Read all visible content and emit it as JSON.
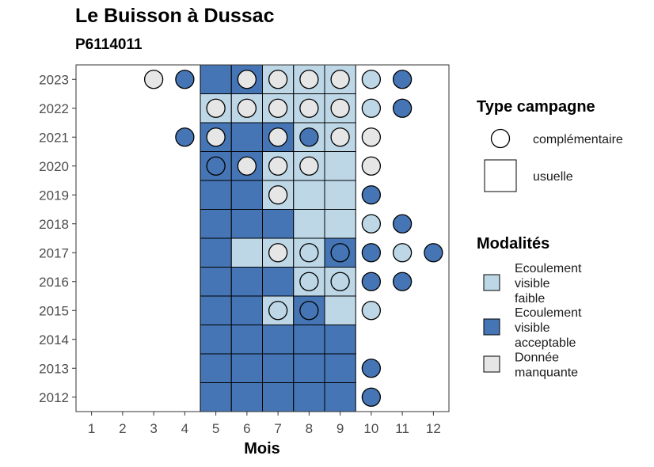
{
  "chart_data": {
    "type": "heatmap",
    "title": "Le Buisson à Dussac",
    "subtitle": "P6114011",
    "xlabel": "Mois",
    "ylabel": "",
    "x_ticks": [
      1,
      2,
      3,
      4,
      5,
      6,
      7,
      8,
      9,
      10,
      11,
      12
    ],
    "y_ticks": [
      2012,
      2013,
      2014,
      2015,
      2016,
      2017,
      2018,
      2019,
      2020,
      2021,
      2022,
      2023
    ],
    "xlim": [
      0.5,
      12.5
    ],
    "ylim": [
      2011.5,
      2023.5
    ],
    "grid": false,
    "colors": {
      "faible": "#bdd7e7",
      "acceptable": "#4575b4",
      "manquante": "#e6e6e6"
    },
    "legend_type": {
      "title": "Type campagne",
      "items": [
        {
          "shape": "circle",
          "label": "complémentaire"
        },
        {
          "shape": "square",
          "label": "usuelle"
        }
      ]
    },
    "legend_modalites": {
      "title": "Modalités",
      "items": [
        {
          "key": "faible",
          "lines": [
            "Ecoulement",
            "visible",
            "faible"
          ]
        },
        {
          "key": "acceptable",
          "lines": [
            "Ecoulement",
            "visible",
            "acceptable"
          ]
        },
        {
          "key": "manquante",
          "lines": [
            "Donnée",
            "manquante"
          ]
        }
      ]
    },
    "squares": [
      {
        "year": 2023,
        "month": 5,
        "v": "acceptable"
      },
      {
        "year": 2023,
        "month": 6,
        "v": "acceptable"
      },
      {
        "year": 2023,
        "month": 7,
        "v": "faible"
      },
      {
        "year": 2023,
        "month": 8,
        "v": "faible"
      },
      {
        "year": 2023,
        "month": 9,
        "v": "faible"
      },
      {
        "year": 2022,
        "month": 5,
        "v": "faible"
      },
      {
        "year": 2022,
        "month": 6,
        "v": "faible"
      },
      {
        "year": 2022,
        "month": 7,
        "v": "faible"
      },
      {
        "year": 2022,
        "month": 8,
        "v": "faible"
      },
      {
        "year": 2022,
        "month": 9,
        "v": "faible"
      },
      {
        "year": 2021,
        "month": 5,
        "v": "acceptable"
      },
      {
        "year": 2021,
        "month": 6,
        "v": "acceptable"
      },
      {
        "year": 2021,
        "month": 7,
        "v": "acceptable"
      },
      {
        "year": 2021,
        "month": 8,
        "v": "faible"
      },
      {
        "year": 2021,
        "month": 9,
        "v": "faible"
      },
      {
        "year": 2020,
        "month": 5,
        "v": "acceptable"
      },
      {
        "year": 2020,
        "month": 6,
        "v": "acceptable"
      },
      {
        "year": 2020,
        "month": 7,
        "v": "faible"
      },
      {
        "year": 2020,
        "month": 8,
        "v": "faible"
      },
      {
        "year": 2020,
        "month": 9,
        "v": "faible"
      },
      {
        "year": 2019,
        "month": 5,
        "v": "acceptable"
      },
      {
        "year": 2019,
        "month": 6,
        "v": "acceptable"
      },
      {
        "year": 2019,
        "month": 7,
        "v": "faible"
      },
      {
        "year": 2019,
        "month": 8,
        "v": "faible"
      },
      {
        "year": 2019,
        "month": 9,
        "v": "faible"
      },
      {
        "year": 2018,
        "month": 5,
        "v": "acceptable"
      },
      {
        "year": 2018,
        "month": 6,
        "v": "acceptable"
      },
      {
        "year": 2018,
        "month": 7,
        "v": "acceptable"
      },
      {
        "year": 2018,
        "month": 8,
        "v": "faible"
      },
      {
        "year": 2018,
        "month": 9,
        "v": "faible"
      },
      {
        "year": 2017,
        "month": 5,
        "v": "acceptable"
      },
      {
        "year": 2017,
        "month": 6,
        "v": "faible"
      },
      {
        "year": 2017,
        "month": 7,
        "v": "faible"
      },
      {
        "year": 2017,
        "month": 8,
        "v": "faible"
      },
      {
        "year": 2017,
        "month": 9,
        "v": "acceptable"
      },
      {
        "year": 2016,
        "month": 5,
        "v": "acceptable"
      },
      {
        "year": 2016,
        "month": 6,
        "v": "acceptable"
      },
      {
        "year": 2016,
        "month": 7,
        "v": "acceptable"
      },
      {
        "year": 2016,
        "month": 8,
        "v": "faible"
      },
      {
        "year": 2016,
        "month": 9,
        "v": "faible"
      },
      {
        "year": 2015,
        "month": 5,
        "v": "acceptable"
      },
      {
        "year": 2015,
        "month": 6,
        "v": "acceptable"
      },
      {
        "year": 2015,
        "month": 7,
        "v": "faible"
      },
      {
        "year": 2015,
        "month": 8,
        "v": "acceptable"
      },
      {
        "year": 2015,
        "month": 9,
        "v": "faible"
      },
      {
        "year": 2014,
        "month": 5,
        "v": "acceptable"
      },
      {
        "year": 2014,
        "month": 6,
        "v": "acceptable"
      },
      {
        "year": 2014,
        "month": 7,
        "v": "acceptable"
      },
      {
        "year": 2014,
        "month": 8,
        "v": "acceptable"
      },
      {
        "year": 2014,
        "month": 9,
        "v": "acceptable"
      },
      {
        "year": 2013,
        "month": 5,
        "v": "acceptable"
      },
      {
        "year": 2013,
        "month": 6,
        "v": "acceptable"
      },
      {
        "year": 2013,
        "month": 7,
        "v": "acceptable"
      },
      {
        "year": 2013,
        "month": 8,
        "v": "acceptable"
      },
      {
        "year": 2013,
        "month": 9,
        "v": "acceptable"
      },
      {
        "year": 2012,
        "month": 5,
        "v": "acceptable"
      },
      {
        "year": 2012,
        "month": 6,
        "v": "acceptable"
      },
      {
        "year": 2012,
        "month": 7,
        "v": "acceptable"
      },
      {
        "year": 2012,
        "month": 8,
        "v": "acceptable"
      },
      {
        "year": 2012,
        "month": 9,
        "v": "acceptable"
      }
    ],
    "circles": [
      {
        "year": 2023,
        "month": 3,
        "v": "manquante"
      },
      {
        "year": 2023,
        "month": 4,
        "v": "acceptable"
      },
      {
        "year": 2023,
        "month": 6,
        "v": "manquante"
      },
      {
        "year": 2023,
        "month": 7,
        "v": "manquante"
      },
      {
        "year": 2023,
        "month": 8,
        "v": "manquante"
      },
      {
        "year": 2023,
        "month": 9,
        "v": "manquante"
      },
      {
        "year": 2023,
        "month": 10,
        "v": "faible"
      },
      {
        "year": 2023,
        "month": 11,
        "v": "acceptable"
      },
      {
        "year": 2022,
        "month": 5,
        "v": "manquante"
      },
      {
        "year": 2022,
        "month": 6,
        "v": "manquante"
      },
      {
        "year": 2022,
        "month": 7,
        "v": "manquante"
      },
      {
        "year": 2022,
        "month": 8,
        "v": "manquante"
      },
      {
        "year": 2022,
        "month": 9,
        "v": "manquante"
      },
      {
        "year": 2022,
        "month": 10,
        "v": "faible"
      },
      {
        "year": 2022,
        "month": 11,
        "v": "acceptable"
      },
      {
        "year": 2021,
        "month": 4,
        "v": "acceptable"
      },
      {
        "year": 2021,
        "month": 5,
        "v": "manquante"
      },
      {
        "year": 2021,
        "month": 7,
        "v": "manquante"
      },
      {
        "year": 2021,
        "month": 8,
        "v": "acceptable"
      },
      {
        "year": 2021,
        "month": 9,
        "v": "manquante"
      },
      {
        "year": 2021,
        "month": 10,
        "v": "manquante"
      },
      {
        "year": 2020,
        "month": 5,
        "v": "acceptable"
      },
      {
        "year": 2020,
        "month": 6,
        "v": "manquante"
      },
      {
        "year": 2020,
        "month": 7,
        "v": "manquante"
      },
      {
        "year": 2020,
        "month": 8,
        "v": "manquante"
      },
      {
        "year": 2020,
        "month": 10,
        "v": "manquante"
      },
      {
        "year": 2019,
        "month": 7,
        "v": "manquante"
      },
      {
        "year": 2019,
        "month": 10,
        "v": "acceptable"
      },
      {
        "year": 2018,
        "month": 10,
        "v": "faible"
      },
      {
        "year": 2018,
        "month": 11,
        "v": "acceptable"
      },
      {
        "year": 2017,
        "month": 7,
        "v": "manquante"
      },
      {
        "year": 2017,
        "month": 8,
        "v": "faible"
      },
      {
        "year": 2017,
        "month": 9,
        "v": "acceptable"
      },
      {
        "year": 2017,
        "month": 10,
        "v": "acceptable"
      },
      {
        "year": 2017,
        "month": 11,
        "v": "faible"
      },
      {
        "year": 2017,
        "month": 12,
        "v": "acceptable"
      },
      {
        "year": 2016,
        "month": 8,
        "v": "faible"
      },
      {
        "year": 2016,
        "month": 9,
        "v": "faible"
      },
      {
        "year": 2016,
        "month": 10,
        "v": "acceptable"
      },
      {
        "year": 2016,
        "month": 11,
        "v": "acceptable"
      },
      {
        "year": 2015,
        "month": 7,
        "v": "faible"
      },
      {
        "year": 2015,
        "month": 8,
        "v": "acceptable"
      },
      {
        "year": 2015,
        "month": 10,
        "v": "faible"
      },
      {
        "year": 2013,
        "month": 10,
        "v": "acceptable"
      },
      {
        "year": 2012,
        "month": 10,
        "v": "acceptable"
      }
    ]
  }
}
